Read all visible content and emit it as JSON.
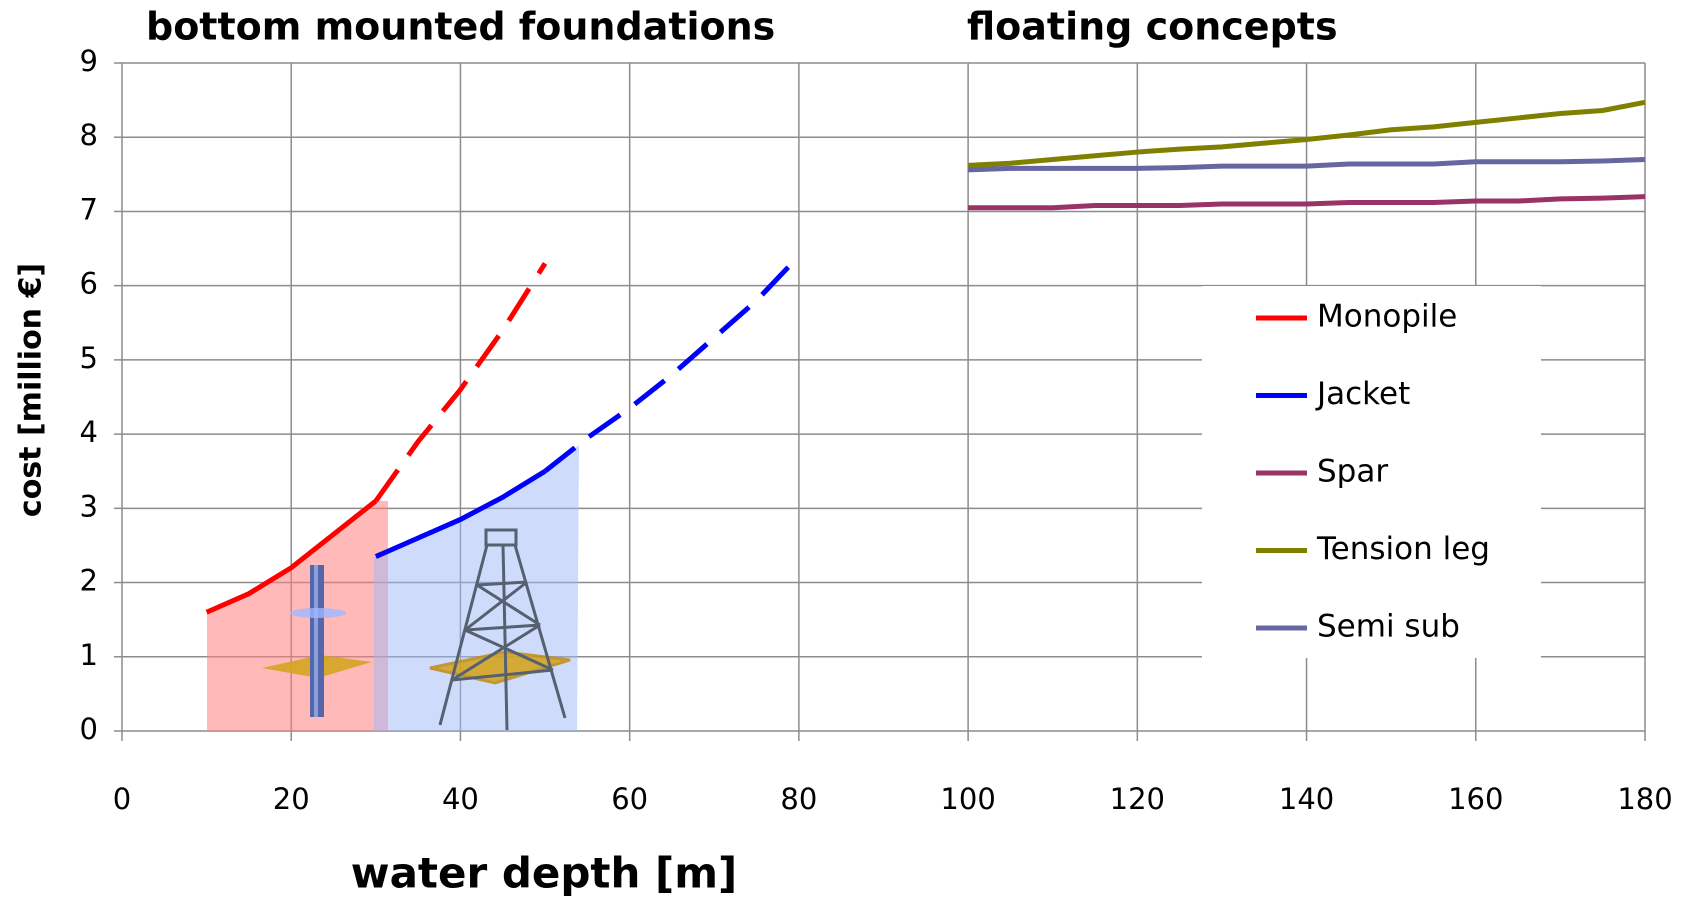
{
  "chart_data": {
    "type": "line",
    "annotations": [
      "bottom mounted foundations",
      "floating concepts"
    ],
    "x_label": "water depth [m]",
    "y_label": "cost [million €]",
    "xlim": [
      0,
      180
    ],
    "xticks": [
      0,
      20,
      40,
      60,
      80,
      100,
      120,
      140,
      160,
      180
    ],
    "ylim": [
      0,
      9
    ],
    "yticks": [
      0,
      1,
      2,
      3,
      4,
      5,
      6,
      7,
      8,
      9
    ],
    "grid": true,
    "legend": "right",
    "series": [
      {
        "name": "Monopile",
        "color": "#ff0000",
        "segments": [
          {
            "style": "solid",
            "x": [
              10,
              15,
              20,
              25,
              30
            ],
            "values": [
              1.6,
              1.85,
              2.2,
              2.65,
              3.1
            ]
          },
          {
            "style": "dashed",
            "x": [
              30,
              35,
              40,
              45,
              50
            ],
            "values": [
              3.1,
              3.9,
              4.6,
              5.4,
              6.3
            ]
          }
        ]
      },
      {
        "name": "Jacket",
        "color": "#0000ff",
        "segments": [
          {
            "style": "solid",
            "x": [
              30,
              35,
              40,
              45,
              50
            ],
            "values": [
              2.35,
              2.6,
              2.85,
              3.15,
              3.5
            ]
          },
          {
            "style": "dashed",
            "x": [
              50,
              55,
              60,
              65,
              70,
              75,
              80
            ],
            "values": [
              3.5,
              3.95,
              4.35,
              4.8,
              5.3,
              5.8,
              6.4
            ]
          }
        ]
      },
      {
        "name": "Spar",
        "color": "#993366",
        "x": [
          100,
          105,
          110,
          115,
          120,
          125,
          130,
          135,
          140,
          145,
          150,
          155,
          160,
          165,
          170,
          175,
          180
        ],
        "values": [
          7.05,
          7.05,
          7.05,
          7.08,
          7.08,
          7.08,
          7.1,
          7.1,
          7.1,
          7.12,
          7.12,
          7.12,
          7.14,
          7.14,
          7.17,
          7.18,
          7.2
        ]
      },
      {
        "name": "Tension leg",
        "color": "#808000",
        "x": [
          100,
          105,
          110,
          115,
          120,
          125,
          130,
          135,
          140,
          145,
          150,
          155,
          160,
          165,
          170,
          175,
          180
        ],
        "values": [
          7.62,
          7.65,
          7.7,
          7.75,
          7.8,
          7.84,
          7.87,
          7.92,
          7.97,
          8.03,
          8.1,
          8.14,
          8.2,
          8.26,
          8.32,
          8.36,
          8.47
        ]
      },
      {
        "name": "Semi sub",
        "color": "#6666a0",
        "x": [
          100,
          105,
          110,
          115,
          120,
          125,
          130,
          135,
          140,
          145,
          150,
          155,
          160,
          165,
          170,
          175,
          180
        ],
        "values": [
          7.56,
          7.58,
          7.58,
          7.58,
          7.58,
          7.59,
          7.61,
          7.61,
          7.61,
          7.64,
          7.64,
          7.64,
          7.67,
          7.67,
          7.67,
          7.68,
          7.7
        ]
      }
    ]
  }
}
